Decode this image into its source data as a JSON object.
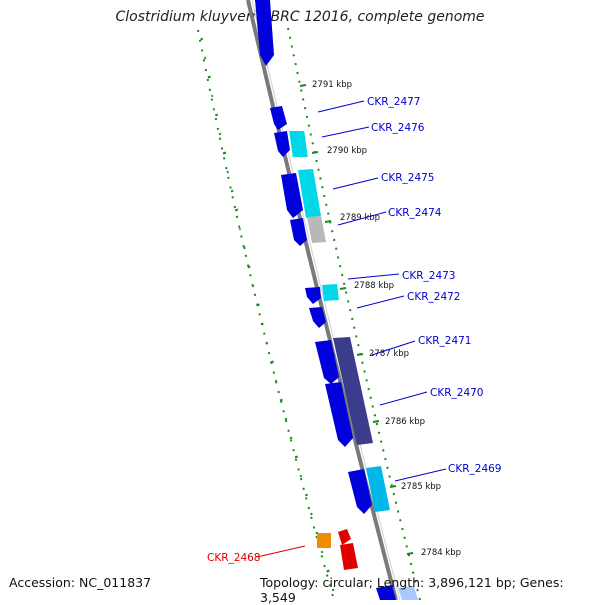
{
  "title": "Clostridium kluyveri NBRC 12016, complete genome",
  "footer": {
    "accession": "Accession: NC_011837",
    "summary": "Topology: circular; Length: 3,896,121 bp; Genes: 3,549"
  },
  "kbp_labels": [
    "2791 kbp",
    "2790 kbp",
    "2789 kbp",
    "2788 kbp",
    "2787 kbp",
    "2786 kbp",
    "2785 kbp",
    "2784 kbp"
  ],
  "genes": [
    {
      "label": "CKR_2477",
      "color": "#0000cc"
    },
    {
      "label": "CKR_2476",
      "color": "#0000cc"
    },
    {
      "label": "CKR_2475",
      "color": "#0000cc"
    },
    {
      "label": "CKR_2474",
      "color": "#0000cc"
    },
    {
      "label": "CKR_2473",
      "color": "#0000cc"
    },
    {
      "label": "CKR_2472",
      "color": "#0000cc"
    },
    {
      "label": "CKR_2471",
      "color": "#0000cc"
    },
    {
      "label": "CKR_2470",
      "color": "#0000cc"
    },
    {
      "label": "CKR_2469",
      "color": "#0000cc"
    },
    {
      "label": "CKR_2468",
      "color": "#dd0000"
    }
  ],
  "colors": {
    "backbone": "#888888",
    "cds": "#0000dd",
    "rna_like": "#00d8e8",
    "orange": "#f08c00",
    "red": "#e00000",
    "purple": "#3c3c8c",
    "grey": "#b8b8b8",
    "dots": "#1a8a1a"
  }
}
